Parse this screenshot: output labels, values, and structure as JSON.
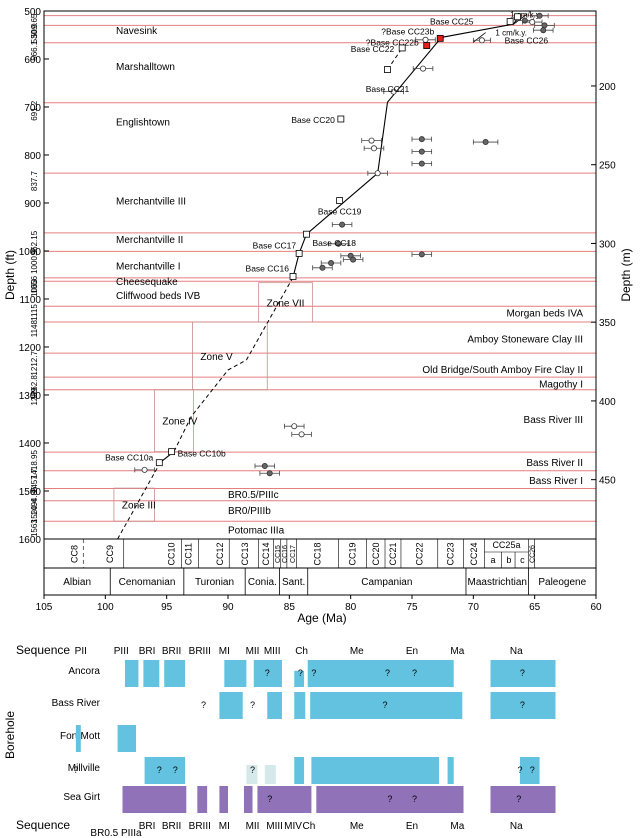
{
  "chart_data": [
    {
      "type": "scatter",
      "xlabel": "Age (Ma)",
      "ylabel": "Depth (ft)",
      "y2label": "Depth (m)",
      "xlim": [
        105,
        60
      ],
      "ylim": [
        500,
        1600
      ],
      "y2lim_m": [
        152.4,
        487.7
      ],
      "x_ticks": [
        105,
        100,
        95,
        90,
        85,
        80,
        75,
        70,
        65,
        60
      ],
      "y_ticks": [
        500,
        600,
        700,
        800,
        900,
        1000,
        1100,
        1200,
        1300,
        1400,
        1500,
        1600
      ],
      "y2_ticks": [
        200,
        250,
        300,
        350,
        400,
        450
      ],
      "grid": false,
      "unit_boundaries": [
        {
          "depth": 509.65,
          "label": "509.65",
          "name": ""
        },
        {
          "depth": 530.0,
          "label": "530.0",
          "name": "Navesink"
        },
        {
          "depth": 566.1,
          "label": "566.1",
          "name": "Marshalltown"
        },
        {
          "depth": 691.2,
          "label": "691.2",
          "name": "Englishtown"
        },
        {
          "depth": 837.7,
          "label": "837.7",
          "name": "Merchantville III"
        },
        {
          "depth": 962.15,
          "label": "962.15",
          "name": "Merchantville II"
        },
        {
          "depth": 1000.9,
          "label": "1000.9",
          "name": "Merchantville I"
        },
        {
          "depth": 1056,
          "label": "1056",
          "name": "Cheesequake"
        },
        {
          "depth": 1063,
          "label": "1063",
          "name": "Cliffwood beds IVB"
        },
        {
          "depth": 1115,
          "label": "1115",
          "name": "Morgan beds IVA"
        },
        {
          "depth": 1148,
          "label": "1148",
          "name": "Amboy Stoneware Clay III"
        },
        {
          "depth": 1212.7,
          "label": "1212.7",
          "name": "Old Bridge/South Amboy Fire Clay  II"
        },
        {
          "depth": 1262.8,
          "label": "1262.8",
          "name": "Magothy I"
        },
        {
          "depth": 1289,
          "label": "1289",
          "name": "Bass River III"
        },
        {
          "depth": 1418.95,
          "label": "1418.95",
          "name": "Bass River II"
        },
        {
          "depth": 1457.7,
          "label": "1457.7",
          "name": "Bass River I"
        },
        {
          "depth": 1494.85,
          "label": "1494.85",
          "name": "BR0.5/PIIIc"
        },
        {
          "depth": 1520.4,
          "label": "1520.4",
          "name": "BR0/PIIIb"
        },
        {
          "depth": 1563,
          "label": "1563",
          "name": "Potomac IIIa"
        }
      ],
      "unit_name_positions": [
        {
          "name": "Navesink",
          "depth": 540,
          "side": "left"
        },
        {
          "name": "Marshalltown",
          "depth": 615,
          "side": "left"
        },
        {
          "name": "Englishtown",
          "depth": 730,
          "side": "left"
        },
        {
          "name": "Merchantville III",
          "depth": 895,
          "side": "left"
        },
        {
          "name": "Merchantville II",
          "depth": 975,
          "side": "left"
        },
        {
          "name": "Merchantville I",
          "depth": 1030,
          "side": "left"
        },
        {
          "name": "Cheesequake",
          "depth": 1062,
          "side": "left"
        },
        {
          "name": "Cliffwood beds IVB",
          "depth": 1092,
          "side": "left"
        },
        {
          "name": "Morgan beds IVA",
          "depth": 1128,
          "side": "right"
        },
        {
          "name": "Amboy Stoneware Clay III",
          "depth": 1182,
          "side": "right"
        },
        {
          "name": "Old Bridge/South Amboy Fire Clay  II",
          "depth": 1246,
          "side": "right"
        },
        {
          "name": "Magothy I",
          "depth": 1276,
          "side": "right"
        },
        {
          "name": "Bass River III",
          "depth": 1350,
          "side": "right"
        },
        {
          "name": "Bass River II",
          "depth": 1440,
          "side": "right"
        },
        {
          "name": "Bass River I",
          "depth": 1477,
          "side": "right"
        },
        {
          "name": "BR0.5/PIIIc",
          "depth": 1506,
          "side": "center"
        },
        {
          "name": "BR0/PIIIb",
          "depth": 1540,
          "side": "center"
        },
        {
          "name": "Potomac IIIa",
          "depth": 1580,
          "side": "center"
        }
      ],
      "nannofossil_datums": [
        {
          "label": "Base CC25",
          "age": 66.4,
          "depth": 512,
          "symbol": "open-square"
        },
        {
          "label": "Base CC26",
          "age": 67.0,
          "depth": 522,
          "symbol": "open-square"
        },
        {
          "label": "?Base CC23b",
          "age": 72.7,
          "depth": 557,
          "symbol": "filled-red-square"
        },
        {
          "label": "?Base CC22b",
          "age": 73.8,
          "depth": 572,
          "symbol": "filled-red-square"
        },
        {
          "label": "Base CC22",
          "age": 75.8,
          "depth": 577,
          "symbol": "open-square"
        },
        {
          "label": "Base CC21",
          "age": 77.0,
          "depth": 622,
          "symbol": "open-square"
        },
        {
          "label": "Base CC20",
          "age": 80.8,
          "depth": 725,
          "symbol": "open-square"
        },
        {
          "label": "Base CC19",
          "age": 80.9,
          "depth": 895,
          "symbol": "open-square"
        },
        {
          "label": "Base CC18",
          "age": 83.6,
          "depth": 965,
          "symbol": "open-square"
        },
        {
          "label": "Base CC17",
          "age": 84.2,
          "depth": 1005,
          "symbol": "open-square"
        },
        {
          "label": "Base CC16",
          "age": 84.7,
          "depth": 1053,
          "symbol": "open-square"
        },
        {
          "label": "Base CC10b",
          "age": 94.6,
          "depth": 1418,
          "symbol": "open-square"
        },
        {
          "label": "Base CC10a",
          "age": 95.6,
          "depth": 1441,
          "symbol": "open-square"
        }
      ],
      "sr_isotope_ages": [
        {
          "age": 65.8,
          "depth": 520,
          "err": 0.7,
          "symbol": "filled-circle"
        },
        {
          "age": 64.6,
          "depth": 510,
          "err": 0.7,
          "symbol": "filled-circle"
        },
        {
          "age": 64.2,
          "depth": 530,
          "err": 0.8,
          "symbol": "filled-circle"
        },
        {
          "age": 64.3,
          "depth": 540,
          "err": 0.8,
          "symbol": "filled-circle"
        },
        {
          "age": 65.2,
          "depth": 523,
          "err": 0.8,
          "symbol": "open-circle"
        },
        {
          "age": 69.3,
          "depth": 561,
          "err": 0.7,
          "symbol": "open-circle"
        },
        {
          "age": 73.9,
          "depth": 560,
          "err": 0.8,
          "symbol": "open-circle"
        },
        {
          "age": 74.1,
          "depth": 620,
          "err": 0.8,
          "symbol": "open-circle"
        },
        {
          "age": 76.5,
          "depth": 668,
          "err": 0.8,
          "symbol": "open-circle"
        },
        {
          "age": 74.2,
          "depth": 767,
          "err": 0.8,
          "symbol": "filled-circle"
        },
        {
          "age": 74.2,
          "depth": 793,
          "err": 0.8,
          "symbol": "filled-circle"
        },
        {
          "age": 74.2,
          "depth": 818,
          "err": 0.8,
          "symbol": "filled-circle"
        },
        {
          "age": 69.0,
          "depth": 773,
          "err": 1.0,
          "symbol": "filled-circle"
        },
        {
          "age": 78.3,
          "depth": 770,
          "err": 0.8,
          "symbol": "open-circle"
        },
        {
          "age": 78.1,
          "depth": 786,
          "err": 0.8,
          "symbol": "open-circle"
        },
        {
          "age": 77.8,
          "depth": 838,
          "err": 0.8,
          "symbol": "open-circle"
        },
        {
          "age": 80.7,
          "depth": 945,
          "err": 0.8,
          "symbol": "filled-circle"
        },
        {
          "age": 81.0,
          "depth": 985,
          "err": 0.8,
          "symbol": "filled-circle"
        },
        {
          "age": 80.0,
          "depth": 1010,
          "err": 0.8,
          "symbol": "filled-circle"
        },
        {
          "age": 79.8,
          "depth": 1018,
          "err": 0.8,
          "symbol": "filled-circle"
        },
        {
          "age": 81.6,
          "depth": 1025,
          "err": 0.8,
          "symbol": "filled-circle"
        },
        {
          "age": 82.3,
          "depth": 1035,
          "err": 0.8,
          "symbol": "filled-circle"
        },
        {
          "age": 74.2,
          "depth": 1007,
          "err": 0.8,
          "symbol": "filled-circle"
        },
        {
          "age": 84.6,
          "depth": 1365,
          "err": 0.8,
          "symbol": "open-circle"
        },
        {
          "age": 84.0,
          "depth": 1382,
          "err": 0.8,
          "symbol": "open-circle"
        },
        {
          "age": 87.0,
          "depth": 1448,
          "err": 0.8,
          "symbol": "filled-circle"
        },
        {
          "age": 86.6,
          "depth": 1463,
          "err": 0.8,
          "symbol": "filled-circle"
        },
        {
          "age": 96.8,
          "depth": 1456,
          "err": 0.8,
          "symbol": "open-circle"
        }
      ],
      "age_model_solid": [
        {
          "age": 66.3,
          "depth": 510
        },
        {
          "age": 66.7,
          "depth": 527
        },
        {
          "age": 72.6,
          "depth": 555
        },
        {
          "age": 77.0,
          "depth": 690
        },
        {
          "age": 77.8,
          "depth": 838
        },
        {
          "age": 83.6,
          "depth": 965
        },
        {
          "age": 84.2,
          "depth": 1005
        },
        {
          "age": 84.7,
          "depth": 1055
        }
      ],
      "age_model_dashed": [
        {
          "age": 84.7,
          "depth": 1055
        },
        {
          "age": 88.5,
          "depth": 1227
        },
        {
          "age": 90.0,
          "depth": 1248
        },
        {
          "age": 93.0,
          "depth": 1345
        },
        {
          "age": 94.4,
          "depth": 1418
        }
      ],
      "age_model_dashed_lower": [
        {
          "age": 95.5,
          "depth": 1440
        },
        {
          "age": 99.0,
          "depth": 1600
        }
      ],
      "age_model_segment": [
        {
          "age": 95.5,
          "depth": 1440
        },
        {
          "age": 94.4,
          "depth": 1418
        }
      ],
      "upper_dashed": [
        {
          "age": 77.0,
          "depth": 622
        },
        {
          "age": 75.8,
          "depth": 577
        }
      ],
      "zones": [
        {
          "label": "Zone VII",
          "age_min": 83.1,
          "age_max": 87.5,
          "depth_top": 1066,
          "depth_bottom": 1148
        },
        {
          "label": "Zone V",
          "age_min": 86.8,
          "age_max": 92.9,
          "depth_top": 1148,
          "depth_bottom": 1289
        },
        {
          "label": "Zone IV",
          "age_min": 92.8,
          "age_max": 96.0,
          "depth_top": 1289,
          "depth_bottom": 1418
        },
        {
          "label": "Zone III",
          "age_min": 96.0,
          "age_max": 99.3,
          "depth_top": 1494,
          "depth_bottom": 1563
        }
      ],
      "annotations": [
        {
          "text": "1 cm/k.y.",
          "age": 67.0,
          "depth": 514
        },
        {
          "text": "1 cm/k.y.",
          "age": 68.2,
          "depth": 551
        }
      ],
      "nanno_zones": [
        "CC8",
        "CC9",
        "CC10",
        "CC11",
        "CC12",
        "CC13",
        "CC14",
        "CC15",
        "CC16",
        "CC17",
        "CC18",
        "CC19",
        "CC20",
        "CC21",
        "CC22",
        "CC23",
        "CC24",
        "CC25a",
        "a",
        "b",
        "c",
        "CC26"
      ],
      "stages": [
        "Albian",
        "Cenomanian",
        "Turonian",
        "Conia.",
        "Sant.",
        "Campanian",
        "Maastrichtian",
        "Paleogene"
      ]
    },
    {
      "type": "table",
      "title": "",
      "header_label": "Sequence",
      "footer_label": "Sequence",
      "footer_sublabel": "BR0.5 PIIIa",
      "ylabel": "Borehole",
      "sequences": [
        {
          "name": "PII",
          "age": 102.0
        },
        {
          "name": "PIII",
          "age": 98.7
        },
        {
          "name": "BRI",
          "age": 96.6
        },
        {
          "name": "BRII",
          "age": 94.6
        },
        {
          "name": "BRIII",
          "age": 92.3
        },
        {
          "name": "MI",
          "age": 90.3
        },
        {
          "name": "MII",
          "age": 88.0
        },
        {
          "name": "MIII",
          "age": 86.4
        },
        {
          "name": "Ch",
          "age": 84.0
        },
        {
          "name": "Me",
          "age": 79.5
        },
        {
          "name": "En",
          "age": 75.0
        },
        {
          "name": "Ma",
          "age": 71.3
        },
        {
          "name": "Na",
          "age": 66.5
        }
      ],
      "footer_sequences": [
        {
          "name": "BRI",
          "age": 96.6
        },
        {
          "name": "BRII",
          "age": 94.6
        },
        {
          "name": "BRIII",
          "age": 92.3
        },
        {
          "name": "MI",
          "age": 90.3
        },
        {
          "name": "MII",
          "age": 88.0
        },
        {
          "name": "MIII",
          "age": 86.2
        },
        {
          "name": "MIV",
          "age": 84.7
        },
        {
          "name": "Ch",
          "age": 83.4
        },
        {
          "name": "Me",
          "age": 79.5
        },
        {
          "name": "En",
          "age": 75.0
        },
        {
          "name": "Ma",
          "age": 71.3
        },
        {
          "name": "Na",
          "age": 66.5
        }
      ],
      "boreholes": [
        {
          "name": "Ancora",
          "color": "#62c2df",
          "blocks": [
            [
              98.4,
              97.3,
              1
            ],
            [
              96.9,
              95.6,
              1
            ],
            [
              95.2,
              93.5,
              1
            ],
            [
              90.3,
              88.5,
              1
            ],
            [
              87.9,
              85.6,
              1
            ],
            [
              84.6,
              83.8,
              0.6
            ],
            [
              83.5,
              71.6,
              1
            ],
            [
              68.6,
              63.3,
              1
            ]
          ],
          "q": [
            [
              86.8,
              "?"
            ],
            [
              84.1,
              "?"
            ],
            [
              83.0,
              "?"
            ],
            [
              77.0,
              "?"
            ],
            [
              74.8,
              "?"
            ],
            [
              66.0,
              "?"
            ]
          ]
        },
        {
          "name": "Bass River",
          "color": "#62c2df",
          "blocks": [
            [
              90.7,
              88.8,
              1
            ],
            [
              86.8,
              85.6,
              1
            ],
            [
              84.6,
              83.7,
              1
            ],
            [
              83.3,
              70.9,
              1
            ],
            [
              68.6,
              63.3,
              1
            ]
          ],
          "q": [
            [
              92.0,
              "?"
            ],
            [
              88.0,
              "?"
            ],
            [
              77.2,
              "?"
            ],
            [
              66.0,
              "?"
            ]
          ]
        },
        {
          "name": "Fort Mott",
          "color": "#62c2df",
          "blocks": [
            [
              102.4,
              102.0,
              1
            ],
            [
              99.0,
              97.5,
              1
            ]
          ],
          "q": []
        },
        {
          "name": "Millville",
          "color": "#62c2df",
          "blocks": [
            [
              96.8,
              93.5,
              1
            ],
            [
              84.6,
              83.8,
              1
            ],
            [
              83.2,
              72.8,
              1
            ],
            [
              72.1,
              71.6,
              1
            ],
            [
              66.2,
              64.6,
              1
            ]
          ],
          "light": [
            [
              88.5,
              87.6
            ],
            [
              87.0,
              86.1
            ]
          ],
          "q": [
            [
              102.4,
              "?"
            ],
            [
              95.6,
              "?"
            ],
            [
              94.3,
              "?"
            ],
            [
              88.0,
              "?"
            ],
            [
              66.2,
              "?"
            ],
            [
              65.2,
              "?"
            ]
          ]
        },
        {
          "name": "Sea Girt",
          "color": "#8f72b7",
          "blocks": [
            [
              98.6,
              93.4,
              1
            ],
            [
              92.5,
              91.7,
              1
            ],
            [
              90.7,
              90.0,
              1
            ],
            [
              88.7,
              88.0,
              1
            ],
            [
              87.6,
              83.2,
              1
            ],
            [
              82.8,
              70.8,
              1
            ],
            [
              68.6,
              63.3,
              1
            ]
          ],
          "q": [
            [
              86.6,
              "?"
            ],
            [
              76.8,
              "?"
            ],
            [
              74.8,
              "?"
            ],
            [
              66.3,
              "?"
            ]
          ]
        }
      ]
    }
  ]
}
